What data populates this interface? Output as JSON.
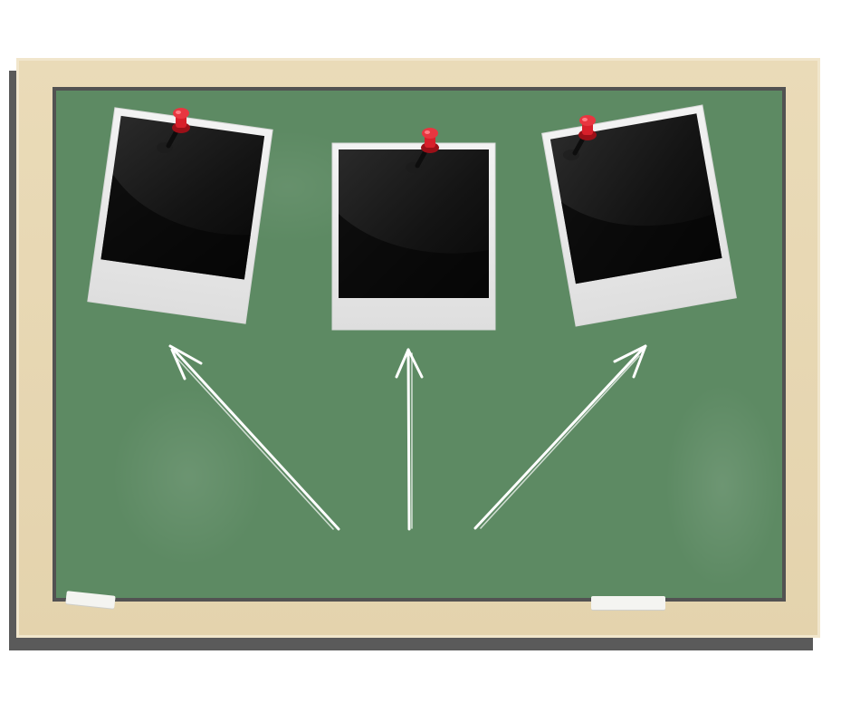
{
  "scene": {
    "colors": {
      "frame": "#e6d5b0",
      "board": "#5d8a63",
      "frame_shadow": "#5a5a5a",
      "photo_border": "#ececec",
      "photo_fill": "#111111",
      "pin": "#d81f2a",
      "chalk_lines": "#ffffff"
    },
    "photos": [
      {
        "name": "photo-frame-left",
        "rotation_deg": 8
      },
      {
        "name": "photo-frame-center",
        "rotation_deg": 0
      },
      {
        "name": "photo-frame-right",
        "rotation_deg": -10
      }
    ],
    "pins": [
      {
        "name": "pushpin-left-icon"
      },
      {
        "name": "pushpin-center-icon"
      },
      {
        "name": "pushpin-right-icon"
      }
    ],
    "arrows": [
      {
        "name": "chalk-arrow-left"
      },
      {
        "name": "chalk-arrow-center"
      },
      {
        "name": "chalk-arrow-right"
      }
    ],
    "chalk_pieces": [
      {
        "name": "chalk-piece-left"
      },
      {
        "name": "chalk-piece-right"
      }
    ]
  }
}
